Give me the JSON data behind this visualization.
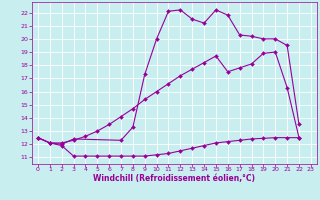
{
  "xlabel": "Windchill (Refroidissement éolien,°C)",
  "bg_color": "#c8eef0",
  "grid_color": "#aadddd",
  "line_color": "#990099",
  "xlim": [
    -0.5,
    23.5
  ],
  "ylim": [
    10.5,
    22.8
  ],
  "xticks": [
    0,
    1,
    2,
    3,
    4,
    5,
    6,
    7,
    8,
    9,
    10,
    11,
    12,
    13,
    14,
    15,
    16,
    17,
    18,
    19,
    20,
    21,
    22,
    23
  ],
  "yticks": [
    11,
    12,
    13,
    14,
    15,
    16,
    17,
    18,
    19,
    20,
    21,
    22
  ],
  "line1_x": [
    0,
    1,
    2,
    3,
    4,
    5,
    6,
    7,
    8,
    9,
    10,
    11,
    12,
    13,
    14,
    15,
    16,
    17,
    18,
    19,
    20,
    21,
    22
  ],
  "line1_y": [
    12.5,
    12.1,
    11.9,
    11.1,
    11.1,
    11.1,
    11.1,
    11.1,
    11.1,
    11.1,
    11.2,
    11.3,
    11.5,
    11.7,
    11.9,
    12.1,
    12.2,
    12.3,
    12.4,
    12.45,
    12.5,
    12.5,
    12.5
  ],
  "line2_x": [
    0,
    1,
    2,
    3,
    4,
    5,
    6,
    7,
    8,
    9,
    10,
    11,
    12,
    13,
    14,
    15,
    16,
    17,
    18,
    19,
    20,
    21,
    22
  ],
  "line2_y": [
    12.5,
    12.1,
    12.1,
    12.3,
    12.6,
    13.0,
    13.5,
    14.1,
    14.7,
    15.4,
    16.0,
    16.6,
    17.2,
    17.7,
    18.2,
    18.7,
    17.5,
    17.8,
    18.1,
    18.9,
    19.0,
    16.3,
    12.5
  ],
  "line3_x": [
    0,
    1,
    2,
    3,
    7,
    8,
    9,
    10,
    11,
    12,
    13,
    14,
    15,
    16,
    17,
    18,
    19,
    20,
    21,
    22
  ],
  "line3_y": [
    12.5,
    12.1,
    12.0,
    12.4,
    12.3,
    13.3,
    17.3,
    20.0,
    22.1,
    22.2,
    21.5,
    21.2,
    22.2,
    21.8,
    20.3,
    20.2,
    20.0,
    20.0,
    19.5,
    13.5
  ]
}
